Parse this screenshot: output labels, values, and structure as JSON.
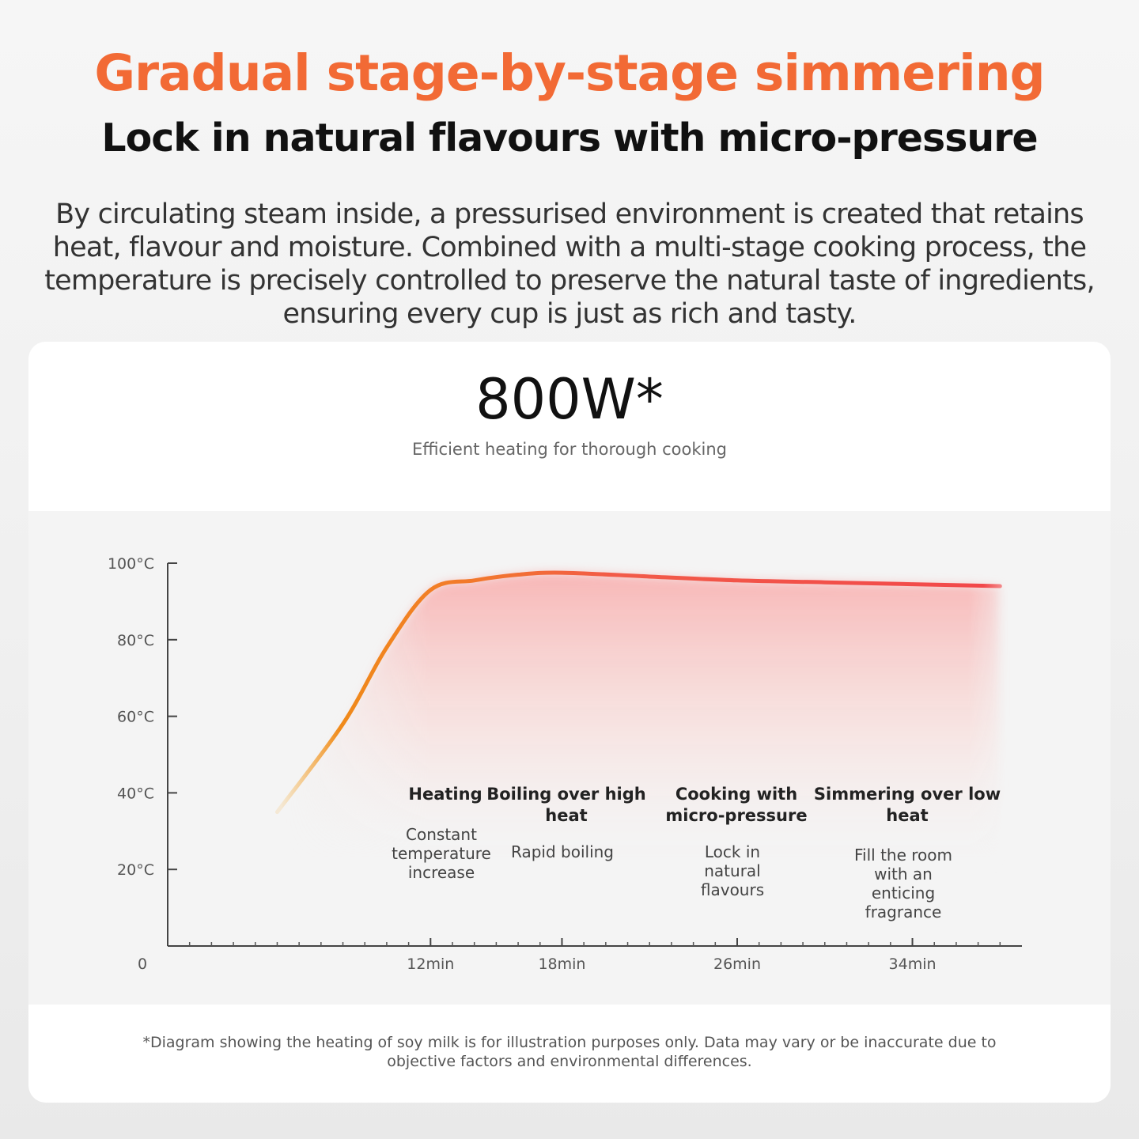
{
  "header": {
    "title": "Gradual stage-by-stage simmering",
    "subtitle": "Lock in natural flavours with micro-pressure",
    "description": "By circulating steam inside, a pressurised environment is created that retains heat, flavour and moisture. Combined with a multi-stage cooking process, the temperature is precisely controlled to preserve the natural taste of ingredients, ensuring every cup is just as rich and tasty."
  },
  "power": {
    "value": "800W*",
    "caption": "Efficient heating for thorough cooking"
  },
  "footnote": "*Diagram showing the heating of soy milk is for illustration purposes only. Data may vary or be inaccurate due to objective factors and environmental differences.",
  "colors": {
    "accent": "#f26a35",
    "curve_start": "#f08a1a",
    "curve_end": "#f2484a"
  },
  "chart_data": {
    "type": "line",
    "title": "",
    "xlabel": "",
    "ylabel": "",
    "y_ticks": [
      {
        "value": 0,
        "label": "0"
      },
      {
        "value": 20,
        "label": "20°C"
      },
      {
        "value": 40,
        "label": "40°C"
      },
      {
        "value": 60,
        "label": "60°C"
      },
      {
        "value": 80,
        "label": "80°C"
      },
      {
        "value": 100,
        "label": "100°C"
      }
    ],
    "x_ticks": [
      {
        "value": 12,
        "label": "12min"
      },
      {
        "value": 18,
        "label": "18min"
      },
      {
        "value": 26,
        "label": "26min"
      },
      {
        "value": 34,
        "label": "34min"
      }
    ],
    "xlim": [
      0,
      39
    ],
    "ylim": [
      0,
      100
    ],
    "grid": false,
    "series": [
      {
        "x": [
          5,
          8,
          10,
          12,
          14,
          16,
          18,
          22,
          26,
          30,
          34,
          38
        ],
        "y": [
          35,
          58,
          78,
          93,
          95.5,
          97,
          97.5,
          96.5,
          95.5,
          95,
          94.5,
          94
        ]
      }
    ],
    "stages": [
      {
        "title": "Heating",
        "description": "Constant temperature increase"
      },
      {
        "title": "Boiling over high heat",
        "description": "Rapid boiling"
      },
      {
        "title": "Cooking with micro-pressure",
        "description": "Lock in natural flavours"
      },
      {
        "title": "Simmering over low heat",
        "description": "Fill the room with an enticing fragrance"
      }
    ]
  }
}
